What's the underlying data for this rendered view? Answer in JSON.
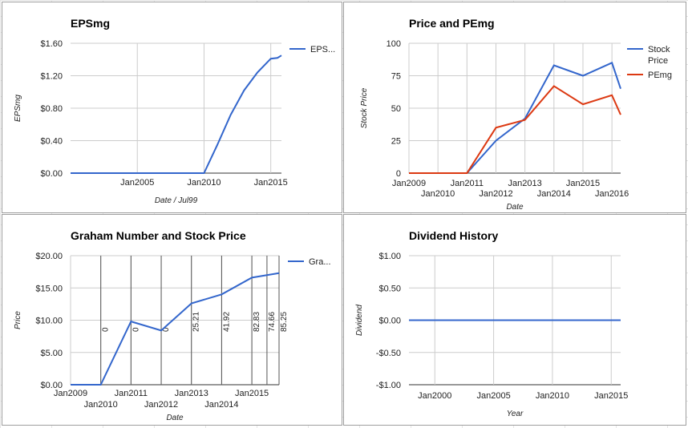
{
  "chart_data": [
    {
      "type": "line",
      "title": "EPSmg",
      "xlabel": "Date / Jul99",
      "ylabel": "EPSmg",
      "ylim": [
        0,
        1.6
      ],
      "xlim": [
        2000,
        2015.8
      ],
      "y_ticks": [
        "$0.00",
        "$0.40",
        "$0.80",
        "$1.20",
        "$1.60"
      ],
      "x_ticks": [
        {
          "label": "Jan2005",
          "x": 2005
        },
        {
          "label": "Jan2010",
          "x": 2010
        },
        {
          "label": "Jan2015",
          "x": 2015
        }
      ],
      "legend": {
        "position": "right",
        "entries": [
          {
            "name": "EPS...",
            "color": "#3366cc"
          }
        ]
      },
      "series": [
        {
          "name": "EPS...",
          "color": "#3366cc",
          "x": [
            2000,
            2004,
            2008,
            2010,
            2011,
            2012,
            2013,
            2014,
            2015,
            2015.5,
            2015.8
          ],
          "y": [
            0,
            0,
            0,
            0,
            0.35,
            0.72,
            1.02,
            1.24,
            1.41,
            1.42,
            1.45
          ]
        }
      ]
    },
    {
      "type": "line",
      "title": "Price and PEmg",
      "xlabel": "Date",
      "ylabel": "Stock Price",
      "ylim": [
        0,
        100
      ],
      "xlim": [
        2009,
        2016.3
      ],
      "y_ticks": [
        "0",
        "25",
        "50",
        "75",
        "100"
      ],
      "x_ticks": [
        {
          "label": "Jan2009",
          "x": 2009,
          "row": 1
        },
        {
          "label": "Jan2010",
          "x": 2010,
          "row": 2
        },
        {
          "label": "Jan2011",
          "x": 2011,
          "row": 1
        },
        {
          "label": "Jan2012",
          "x": 2012,
          "row": 2
        },
        {
          "label": "Jan2013",
          "x": 2013,
          "row": 1
        },
        {
          "label": "Jan2014",
          "x": 2014,
          "row": 2
        },
        {
          "label": "Jan2015",
          "x": 2015,
          "row": 1
        },
        {
          "label": "Jan2016",
          "x": 2016,
          "row": 2
        }
      ],
      "legend": {
        "position": "right",
        "entries": [
          {
            "name": "Stock Price",
            "color": "#3366cc"
          },
          {
            "name": "PEmg",
            "color": "#dc3912"
          }
        ]
      },
      "series": [
        {
          "name": "Stock Price",
          "color": "#3366cc",
          "x": [
            2009,
            2010,
            2011,
            2012,
            2013,
            2014,
            2015,
            2016,
            2016.3
          ],
          "y": [
            0,
            0,
            0,
            25,
            42,
            83,
            75,
            85,
            65
          ]
        },
        {
          "name": "PEmg",
          "color": "#dc3912",
          "x": [
            2009,
            2010,
            2011,
            2012,
            2013,
            2014,
            2015,
            2016,
            2016.3
          ],
          "y": [
            0,
            0,
            0,
            35,
            41,
            67,
            53,
            60,
            45
          ]
        }
      ]
    },
    {
      "type": "line",
      "title": "Graham Number and Stock Price",
      "xlabel": "Date",
      "ylabel": "Price",
      "ylim": [
        0,
        20
      ],
      "xlim": [
        2009,
        2015.9
      ],
      "y_ticks": [
        "$0.00",
        "$5.00",
        "$10.00",
        "$15.00",
        "$20.00"
      ],
      "x_ticks": [
        {
          "label": "Jan2009",
          "x": 2009,
          "row": 1
        },
        {
          "label": "Jan2010",
          "x": 2010,
          "row": 2
        },
        {
          "label": "Jan2011",
          "x": 2011,
          "row": 1
        },
        {
          "label": "Jan2012",
          "x": 2012,
          "row": 2
        },
        {
          "label": "Jan2013",
          "x": 2013,
          "row": 1
        },
        {
          "label": "Jan2014",
          "x": 2014,
          "row": 2
        },
        {
          "label": "Jan2015",
          "x": 2015,
          "row": 1
        }
      ],
      "legend": {
        "position": "right",
        "entries": [
          {
            "name": "Gra...",
            "color": "#3366cc"
          }
        ]
      },
      "series": [
        {
          "name": "Gra...",
          "color": "#3366cc",
          "x": [
            2009,
            2010,
            2011,
            2012,
            2013,
            2014,
            2015,
            2015.9
          ],
          "y": [
            0,
            0,
            9.8,
            8.4,
            12.6,
            14.0,
            16.6,
            17.3
          ]
        }
      ],
      "annotations": [
        {
          "x": 2010,
          "text": "0"
        },
        {
          "x": 2011,
          "text": "0"
        },
        {
          "x": 2012,
          "text": "0"
        },
        {
          "x": 2013,
          "text": "25.21"
        },
        {
          "x": 2014,
          "text": "41.92"
        },
        {
          "x": 2015,
          "text": "82.83"
        },
        {
          "x": 2015.5,
          "text": "74.66"
        },
        {
          "x": 2015.9,
          "text": "85.25"
        }
      ]
    },
    {
      "type": "line",
      "title": "Dividend History",
      "xlabel": "Year",
      "ylabel": "Dividend",
      "ylim": [
        -1,
        1
      ],
      "xlim": [
        1997.8,
        2015.8
      ],
      "y_ticks": [
        "-$1.00",
        "-$0.50",
        "$0.00",
        "$0.50",
        "$1.00"
      ],
      "x_ticks": [
        {
          "label": "Jan2000",
          "x": 2000
        },
        {
          "label": "Jan2005",
          "x": 2005
        },
        {
          "label": "Jan2010",
          "x": 2010
        },
        {
          "label": "Jan2015",
          "x": 2015
        }
      ],
      "legend": null,
      "series": [
        {
          "name": "",
          "color": "#3366cc",
          "x": [
            1997.8,
            2015.8
          ],
          "y": [
            0,
            0
          ]
        }
      ]
    }
  ]
}
